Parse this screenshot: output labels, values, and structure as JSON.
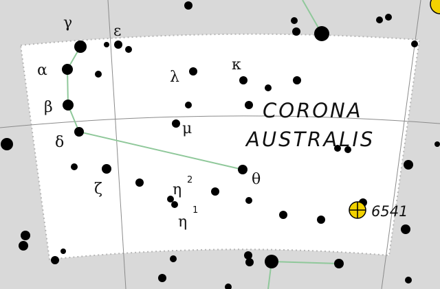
{
  "constellation": {
    "line1": "CORONA",
    "line2": "AUSTRALIS"
  },
  "star_labels": {
    "gamma": "γ",
    "epsilon": "ε",
    "alpha": "α",
    "beta": "β",
    "delta": "δ",
    "lambda": "λ",
    "kappa": "κ",
    "mu": "μ",
    "zeta": "ζ",
    "theta": "θ",
    "eta": "η",
    "eta2_index": "2",
    "eta1_index": "1"
  },
  "cluster_label": "6541",
  "colors": {
    "background": "#d9d9d9",
    "region": "#ffffff",
    "stars": "#000000",
    "constellation_lines": "#8fc89a",
    "cluster_marker": "#f2d200",
    "grid": "#888888",
    "boundary": "#bdbdbd"
  }
}
